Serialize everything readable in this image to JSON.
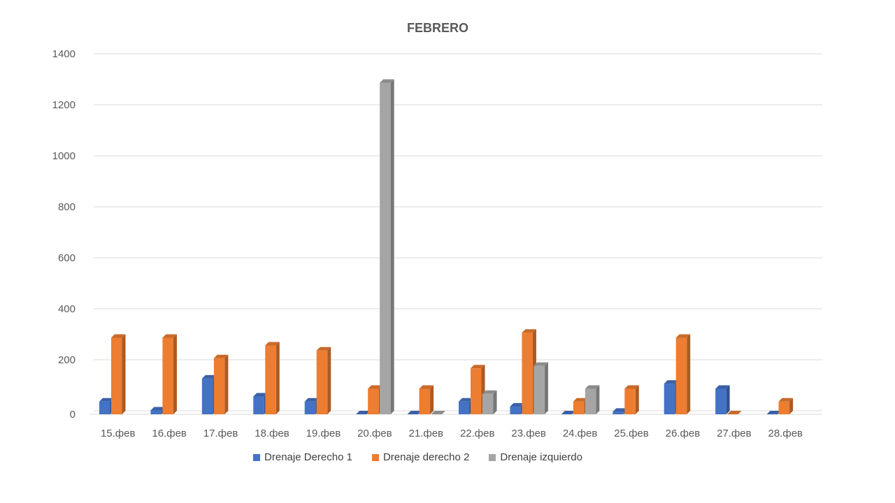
{
  "chart_data": {
    "type": "bar",
    "title": "FEBRERO",
    "categories": [
      "15.фев",
      "16.фев",
      "17.фев",
      "18.фев",
      "19.фев",
      "20.фев",
      "21.фев",
      "22.фев",
      "23.фев",
      "24.фев",
      "25.фев",
      "26.фев",
      "27.фев",
      "28.фев"
    ],
    "series": [
      {
        "name": "Drenaje Derecho 1",
        "color": "#4472C4",
        "values": [
          50,
          15,
          140,
          70,
          50,
          0,
          0,
          50,
          30,
          0,
          10,
          120,
          100,
          0
        ]
      },
      {
        "name": "Drenaje derecho 2",
        "color": "#ED7D31",
        "values": [
          300,
          300,
          220,
          270,
          250,
          100,
          100,
          180,
          320,
          50,
          100,
          300,
          0,
          50
        ]
      },
      {
        "name": "Drenaje izquierdo",
        "color": "#A5A5A5",
        "values": [
          null,
          null,
          null,
          null,
          null,
          1300,
          0,
          80,
          190,
          100,
          null,
          null,
          null,
          null
        ]
      }
    ],
    "ylim": [
      0,
      1400
    ],
    "yticks": [
      0,
      200,
      400,
      600,
      800,
      1000,
      1200,
      1400
    ],
    "grid": true,
    "legend_position": "bottom"
  }
}
